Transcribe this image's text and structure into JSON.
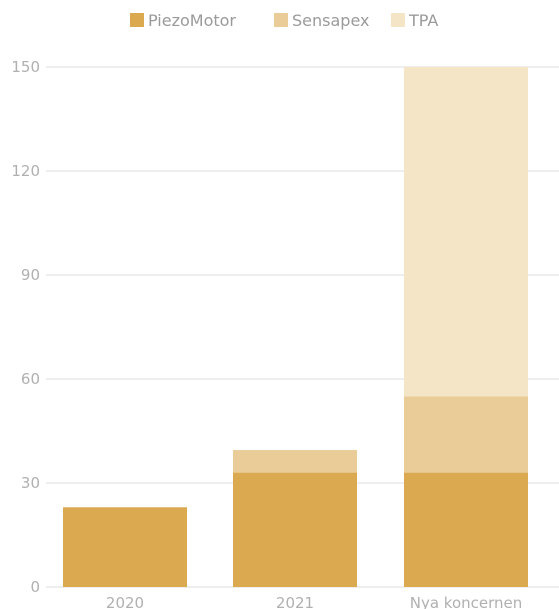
{
  "chart_data": {
    "type": "bar",
    "stacked": true,
    "categories": [
      "2020",
      "2021",
      "Nya koncernen"
    ],
    "series": [
      {
        "name": "PiezoMotor",
        "color": "#dba94f",
        "values": [
          23,
          33,
          33
        ]
      },
      {
        "name": "Sensapex",
        "color": "#e9cc97",
        "values": [
          0,
          6.5,
          22
        ]
      },
      {
        "name": "TPA",
        "color": "#f4e5c6",
        "values": [
          0,
          0,
          95
        ]
      }
    ],
    "ylim": [
      0,
      150
    ],
    "yticks": [
      "0",
      "30",
      "60",
      "90",
      "120",
      "150"
    ],
    "grid": true,
    "legend_position": "top-center",
    "title": "",
    "xlabel": "",
    "ylabel": ""
  }
}
